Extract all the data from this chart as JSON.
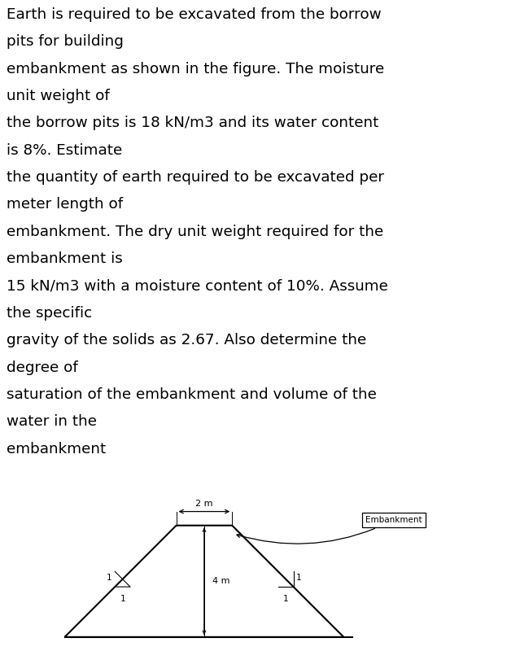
{
  "text_lines": [
    "Earth is required to be excavated from the borrow",
    "pits for building",
    "embankment as shown in the figure. The moisture",
    "unit weight of",
    "the borrow pits is 18 kN/m3 and its water content",
    "is 8%. Estimate",
    "the quantity of earth required to be excavated per",
    "meter length of",
    "embankment. The dry unit weight required for the",
    "embankment is",
    "15 kN/m3 with a moisture content of 10%. Assume",
    "the specific",
    "gravity of the solids as 2.67. Also determine the",
    "degree of",
    "saturation of the embankment and volume of the",
    "water in the",
    "embankment"
  ],
  "text_fontsize": 13.2,
  "text_color": "#000000",
  "bg_color": "#ffffff",
  "fig_width": 6.39,
  "fig_height": 8.0,
  "diagram": {
    "dim_label_2m": "2 m",
    "dim_label_4m": "4 m",
    "slope_label": "1",
    "annotation_label": "Embankment"
  }
}
